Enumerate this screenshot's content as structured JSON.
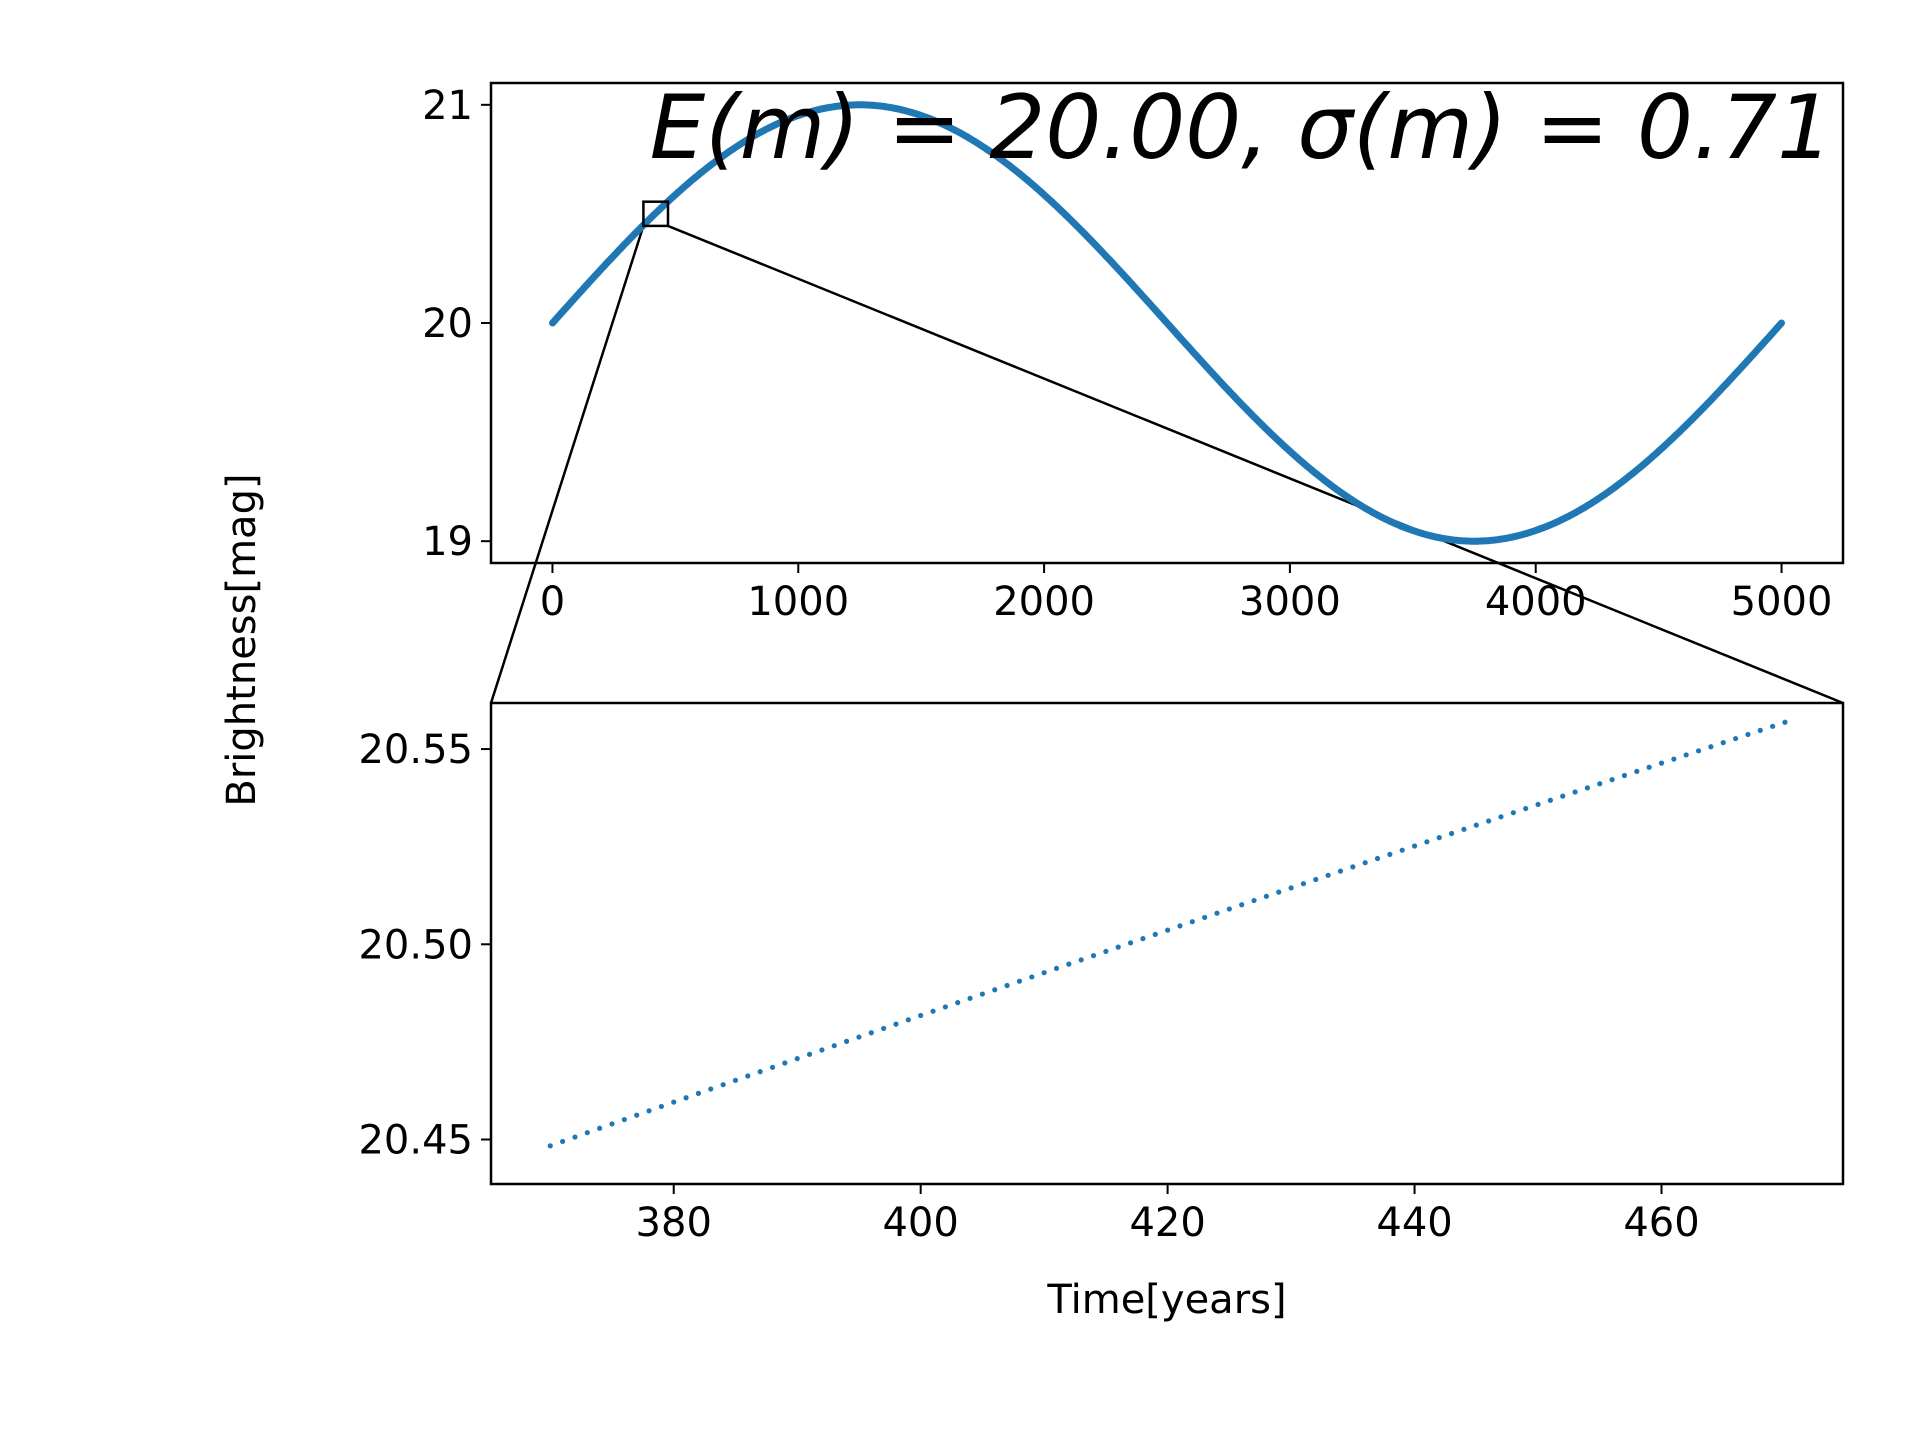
{
  "chart_data": [
    {
      "type": "line",
      "panel": "overview",
      "title": "E(m) = 20.00, σ(m) = 0.71",
      "xlabel": "",
      "ylabel": "Brightness[mag]",
      "xlim": [
        -250,
        5250
      ],
      "ylim": [
        18.9,
        21.1
      ],
      "xticks": [
        0,
        1000,
        2000,
        3000,
        4000,
        5000
      ],
      "xtick_labels": [
        "0",
        "1000",
        "2000",
        "3000",
        "4000",
        "5000"
      ],
      "yticks": [
        19,
        20,
        21
      ],
      "ytick_labels": [
        "19",
        "20",
        "21"
      ],
      "series": [
        {
          "name": "brightness",
          "color": "#1f77b4",
          "model": {
            "mean": 20.0,
            "amplitude": 1.0,
            "period": 5000,
            "x_start": 0,
            "x_end": 5000,
            "step": 10
          }
        }
      ],
      "zoom_box": {
        "x": [
          370,
          470
        ],
        "y": [
          20.445,
          20.556
        ]
      }
    },
    {
      "type": "scatter",
      "panel": "zoom",
      "xlabel": "Time[years]",
      "xlim": [
        365.2,
        474.7
      ],
      "ylim": [
        20.4386,
        20.5618
      ],
      "xticks": [
        380,
        400,
        420,
        440,
        460
      ],
      "xtick_labels": [
        "380",
        "400",
        "420",
        "440",
        "460"
      ],
      "yticks": [
        20.45,
        20.5,
        20.55
      ],
      "ytick_labels": [
        "20.45",
        "20.50",
        "20.55"
      ],
      "series": [
        {
          "name": "brightness",
          "color": "#1f77b4",
          "model": {
            "mean": 20.0,
            "amplitude": 1.0,
            "period": 5000,
            "x_start": 370,
            "x_end": 470,
            "step": 1
          }
        }
      ]
    }
  ]
}
